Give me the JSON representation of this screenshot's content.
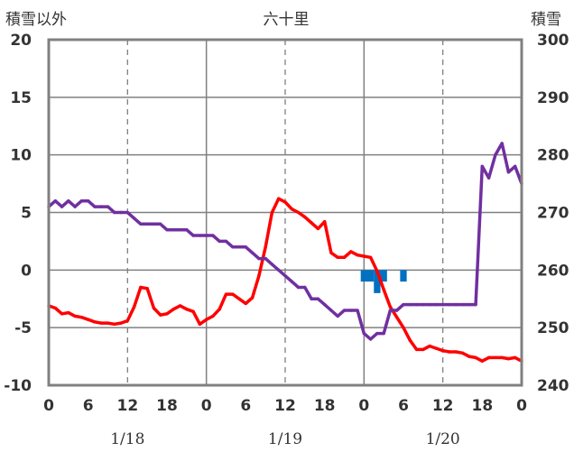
{
  "chart_data": {
    "type": "line",
    "title": "六十里",
    "left_axis_label": "積雪以外",
    "right_axis_label": "積雪",
    "left_ylim": [
      -10,
      20
    ],
    "left_yticks": [
      20,
      15,
      10,
      5,
      0,
      -5,
      -10
    ],
    "right_ylim": [
      240,
      300
    ],
    "right_yticks": [
      300,
      290,
      280,
      270,
      260,
      250,
      240
    ],
    "xlim": [
      0,
      72
    ],
    "x_ticks": [
      {
        "x": 0,
        "label": "0"
      },
      {
        "x": 6,
        "label": "6"
      },
      {
        "x": 12,
        "label": "12"
      },
      {
        "x": 18,
        "label": "18"
      },
      {
        "x": 24,
        "label": "0"
      },
      {
        "x": 30,
        "label": "6"
      },
      {
        "x": 36,
        "label": "12"
      },
      {
        "x": 42,
        "label": "18"
      },
      {
        "x": 48,
        "label": "0"
      },
      {
        "x": 54,
        "label": "6"
      },
      {
        "x": 60,
        "label": "12"
      },
      {
        "x": 66,
        "label": "18"
      },
      {
        "x": 72,
        "label": "0"
      }
    ],
    "dates": [
      {
        "x": 12,
        "label": "1/18"
      },
      {
        "x": 36,
        "label": "1/19"
      },
      {
        "x": 60,
        "label": "1/20"
      }
    ],
    "grid": {
      "dashed_x": [
        12,
        36,
        60
      ],
      "solid_x": [
        24,
        48
      ],
      "solid_y": [
        15,
        10,
        5,
        0,
        -5
      ]
    },
    "colors": {
      "temperature": "#ff0000",
      "snow_depth": "#7030a0",
      "precipitation": "#0070c0",
      "frame": "#808080"
    },
    "series": [
      {
        "key": "temperature",
        "axis": "left",
        "x": [
          0,
          1,
          2,
          3,
          4,
          5,
          6,
          7,
          8,
          9,
          10,
          11,
          12,
          13,
          14,
          15,
          16,
          17,
          18,
          19,
          20,
          21,
          22,
          23,
          24,
          25,
          26,
          27,
          28,
          29,
          30,
          31,
          32,
          33,
          34,
          35,
          36,
          37,
          38,
          39,
          40,
          41,
          42,
          43,
          44,
          45,
          46,
          47,
          48,
          49,
          50,
          51,
          52,
          53,
          54,
          55,
          56,
          57,
          58,
          59,
          60,
          61,
          62,
          63,
          64,
          65,
          66,
          67,
          68,
          69,
          70,
          71,
          72
        ],
        "y": [
          -3.1,
          -3.3,
          -3.8,
          -3.7,
          -4.0,
          -4.1,
          -4.3,
          -4.5,
          -4.6,
          -4.6,
          -4.7,
          -4.6,
          -4.4,
          -3.2,
          -1.5,
          -1.6,
          -3.3,
          -3.9,
          -3.8,
          -3.4,
          -3.1,
          -3.4,
          -3.6,
          -4.7,
          -4.3,
          -4.0,
          -3.4,
          -2.1,
          -2.1,
          -2.5,
          -2.9,
          -2.4,
          -0.5,
          2.0,
          5.0,
          6.2,
          5.9,
          5.3,
          5.0,
          4.6,
          4.1,
          3.6,
          4.2,
          1.5,
          1.1,
          1.1,
          1.6,
          1.3,
          1.2,
          1.1,
          -0.1,
          -1.7,
          -3.2,
          -4.1,
          -5.0,
          -6.1,
          -6.9,
          -6.9,
          -6.6,
          -6.8,
          -7.0,
          -7.1,
          -7.1,
          -7.2,
          -7.5,
          -7.6,
          -7.9,
          -7.6,
          -7.6,
          -7.6,
          -7.7,
          -7.6,
          -7.9
        ]
      },
      {
        "key": "snow_depth",
        "axis": "right",
        "x": [
          0,
          1,
          2,
          3,
          4,
          5,
          6,
          7,
          8,
          9,
          10,
          11,
          12,
          13,
          14,
          15,
          16,
          17,
          18,
          19,
          20,
          21,
          22,
          23,
          24,
          25,
          26,
          27,
          28,
          29,
          30,
          31,
          32,
          33,
          34,
          35,
          36,
          37,
          38,
          39,
          40,
          41,
          42,
          43,
          44,
          45,
          46,
          47,
          48,
          49,
          50,
          51,
          52,
          53,
          54,
          55,
          56,
          57,
          58,
          59,
          60,
          61,
          62,
          63,
          64,
          65,
          66,
          67,
          68,
          69,
          70,
          71,
          72
        ],
        "y": [
          271,
          272,
          271,
          272,
          271,
          272,
          272,
          271,
          271,
          271,
          270,
          270,
          270,
          269,
          268,
          268,
          268,
          268,
          267,
          267,
          267,
          267,
          266,
          266,
          266,
          266,
          265,
          265,
          264,
          264,
          264,
          263,
          262,
          262,
          261,
          260,
          259,
          258,
          257,
          257,
          255,
          255,
          254,
          253,
          252,
          253,
          253,
          253,
          249,
          248,
          249,
          249,
          253,
          253,
          254,
          254,
          254,
          254,
          254,
          254,
          254,
          254,
          254,
          254,
          254,
          254,
          278,
          276,
          280,
          282,
          277,
          278,
          275
        ]
      },
      {
        "key": "precipitation",
        "axis": "left",
        "mark": "bar",
        "x": [
          48,
          49,
          50,
          51,
          54
        ],
        "y": [
          -1.0,
          -1.0,
          -2.0,
          -1.0,
          -1.0
        ]
      }
    ]
  }
}
